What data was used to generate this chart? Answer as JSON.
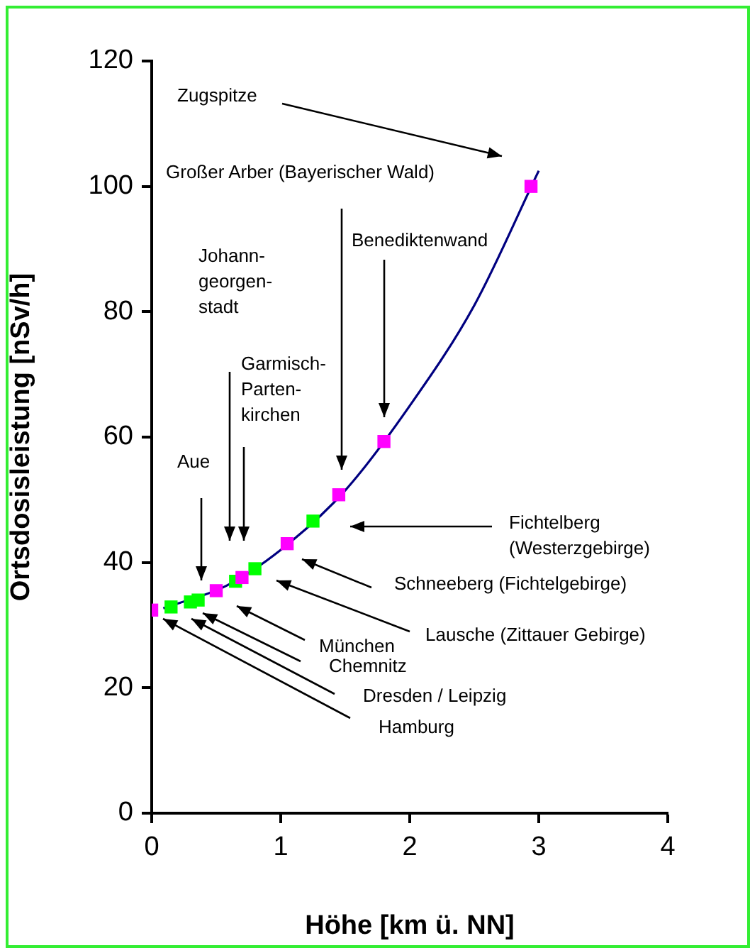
{
  "chart_data": {
    "type": "scatter",
    "xlabel": "Höhe [km ü. NN]",
    "ylabel": "Ortsdosisleistung [nSv/h]",
    "xlim": [
      0,
      4
    ],
    "xticks": [
      0,
      1,
      2,
      3,
      4
    ],
    "ylim": [
      0,
      120
    ],
    "yticks": [
      0,
      20,
      40,
      60,
      80,
      100,
      120
    ],
    "grid": false,
    "legend": false,
    "marker": "square",
    "series": [
      {
        "color": "#ff00ff",
        "x": [
          0,
          0.5,
          0.7,
          1.05,
          1.45,
          1.8,
          2.94
        ],
        "values": [
          32.4,
          35.5,
          37.6,
          43.0,
          50.8,
          59.3,
          100
        ]
      },
      {
        "color": "#00ff00",
        "x": [
          0.15,
          0.3,
          0.36,
          0.65,
          0.8,
          1.25
        ],
        "values": [
          32.9,
          33.7,
          34.0,
          37.0,
          39.0,
          46.6
        ]
      },
      {
        "type": "line",
        "marker": "none",
        "color": "#000080",
        "x": [
          0.09,
          0.58,
          1,
          1.5,
          2,
          2.5,
          3
        ],
        "values": [
          32.7,
          36.3,
          42,
          51.5,
          65,
          81,
          102.5
        ]
      }
    ],
    "annotations": [
      "Zugspitze",
      "Großer Arber (Bayerischer Wald)",
      "Benediktenwand",
      "Johann-\ngeorgen-\nstadt",
      "Garmisch-\nParten-\nkirchen",
      "Aue",
      "Fichtelberg\n(Westerzgebirge)",
      "Schneeberg (Fichtelgebirge)",
      "Lausche (Zittauer Gebirge)",
      "München",
      "Chemnitz",
      "Dresden / Leipzig",
      "Hamburg"
    ]
  }
}
